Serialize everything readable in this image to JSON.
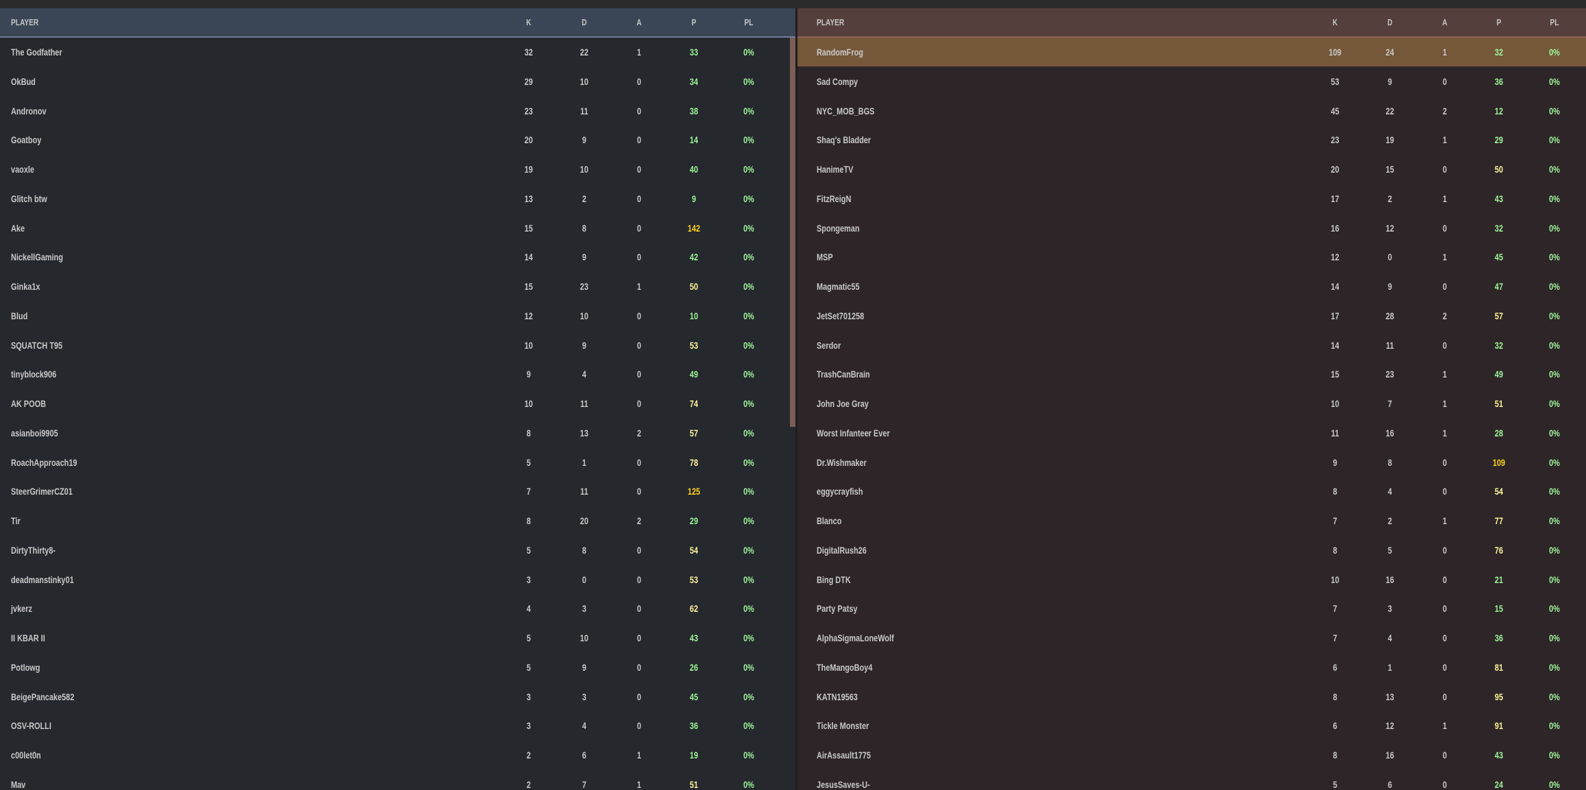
{
  "columns": {
    "player": "PLAYER",
    "k": "K",
    "d": "D",
    "a": "A",
    "p": "P",
    "pl": "PL"
  },
  "colors": {
    "p_low": "#9ff59a",
    "p_mid": "#fff59d",
    "p_high": "#ffd21a",
    "pl": "#9ff59a",
    "highlight_row": "#75583a",
    "left_header": "#3a4655",
    "right_header": "#553f3c"
  },
  "left_team": [
    {
      "name": "The Godfather",
      "k": "32",
      "d": "22",
      "a": "1",
      "p": "33",
      "pl": "0%"
    },
    {
      "name": "OkBud",
      "k": "29",
      "d": "10",
      "a": "0",
      "p": "34",
      "pl": "0%"
    },
    {
      "name": "Andronov",
      "k": "23",
      "d": "11",
      "a": "0",
      "p": "38",
      "pl": "0%"
    },
    {
      "name": "Goatboy",
      "k": "20",
      "d": "9",
      "a": "0",
      "p": "14",
      "pl": "0%"
    },
    {
      "name": "vaoxle",
      "k": "19",
      "d": "10",
      "a": "0",
      "p": "40",
      "pl": "0%"
    },
    {
      "name": "Glitch btw",
      "k": "13",
      "d": "2",
      "a": "0",
      "p": "9",
      "pl": "0%"
    },
    {
      "name": "Ake",
      "k": "15",
      "d": "8",
      "a": "0",
      "p": "142",
      "pl": "0%"
    },
    {
      "name": "NickellGaming",
      "k": "14",
      "d": "9",
      "a": "0",
      "p": "42",
      "pl": "0%"
    },
    {
      "name": "Ginka1x",
      "k": "15",
      "d": "23",
      "a": "1",
      "p": "50",
      "pl": "0%"
    },
    {
      "name": "Blud",
      "k": "12",
      "d": "10",
      "a": "0",
      "p": "10",
      "pl": "0%"
    },
    {
      "name": "SQUATCH T95",
      "k": "10",
      "d": "9",
      "a": "0",
      "p": "53",
      "pl": "0%"
    },
    {
      "name": "tinyblock906",
      "k": "9",
      "d": "4",
      "a": "0",
      "p": "49",
      "pl": "0%"
    },
    {
      "name": "AK POOB",
      "k": "10",
      "d": "11",
      "a": "0",
      "p": "74",
      "pl": "0%"
    },
    {
      "name": "asianboi9905",
      "k": "8",
      "d": "13",
      "a": "2",
      "p": "57",
      "pl": "0%"
    },
    {
      "name": "RoachApproach19",
      "k": "5",
      "d": "1",
      "a": "0",
      "p": "78",
      "pl": "0%"
    },
    {
      "name": "SteerGrimerCZ01",
      "k": "7",
      "d": "11",
      "a": "0",
      "p": "125",
      "pl": "0%"
    },
    {
      "name": "Tir",
      "k": "8",
      "d": "20",
      "a": "2",
      "p": "29",
      "pl": "0%"
    },
    {
      "name": "DirtyThirty8-",
      "k": "5",
      "d": "8",
      "a": "0",
      "p": "54",
      "pl": "0%"
    },
    {
      "name": "deadmanstinky01",
      "k": "3",
      "d": "0",
      "a": "0",
      "p": "53",
      "pl": "0%"
    },
    {
      "name": "jvkerz",
      "k": "4",
      "d": "3",
      "a": "0",
      "p": "62",
      "pl": "0%"
    },
    {
      "name": "II KBAR II",
      "k": "5",
      "d": "10",
      "a": "0",
      "p": "43",
      "pl": "0%"
    },
    {
      "name": "Potlowg",
      "k": "5",
      "d": "9",
      "a": "0",
      "p": "26",
      "pl": "0%"
    },
    {
      "name": "BeigePancake582",
      "k": "3",
      "d": "3",
      "a": "0",
      "p": "45",
      "pl": "0%"
    },
    {
      "name": "OSV-ROLLI",
      "k": "3",
      "d": "4",
      "a": "0",
      "p": "36",
      "pl": "0%"
    },
    {
      "name": "c00let0n",
      "k": "2",
      "d": "6",
      "a": "1",
      "p": "19",
      "pl": "0%"
    },
    {
      "name": "Mav",
      "k": "2",
      "d": "7",
      "a": "1",
      "p": "51",
      "pl": "0%"
    }
  ],
  "right_team": [
    {
      "name": "RandomFrog",
      "k": "109",
      "d": "24",
      "a": "1",
      "p": "32",
      "pl": "0%",
      "highlighted": true
    },
    {
      "name": "Sad Compy",
      "k": "53",
      "d": "9",
      "a": "0",
      "p": "36",
      "pl": "0%"
    },
    {
      "name": "NYC_MOB_BGS",
      "k": "45",
      "d": "22",
      "a": "2",
      "p": "12",
      "pl": "0%"
    },
    {
      "name": "Shaq's Bladder",
      "k": "23",
      "d": "19",
      "a": "1",
      "p": "29",
      "pl": "0%"
    },
    {
      "name": "HanimeTV",
      "k": "20",
      "d": "15",
      "a": "0",
      "p": "50",
      "pl": "0%"
    },
    {
      "name": "FitzReigN",
      "k": "17",
      "d": "2",
      "a": "1",
      "p": "43",
      "pl": "0%"
    },
    {
      "name": "Spongeman",
      "k": "16",
      "d": "12",
      "a": "0",
      "p": "32",
      "pl": "0%"
    },
    {
      "name": "MSP",
      "k": "12",
      "d": "0",
      "a": "1",
      "p": "45",
      "pl": "0%"
    },
    {
      "name": "Magmatic55",
      "k": "14",
      "d": "9",
      "a": "0",
      "p": "47",
      "pl": "0%"
    },
    {
      "name": "JetSet701258",
      "k": "17",
      "d": "28",
      "a": "2",
      "p": "57",
      "pl": "0%"
    },
    {
      "name": "Serdor",
      "k": "14",
      "d": "11",
      "a": "0",
      "p": "32",
      "pl": "0%"
    },
    {
      "name": "TrashCanBrain",
      "k": "15",
      "d": "23",
      "a": "1",
      "p": "49",
      "pl": "0%"
    },
    {
      "name": "John Joe Gray",
      "k": "10",
      "d": "7",
      "a": "1",
      "p": "51",
      "pl": "0%"
    },
    {
      "name": "Worst Infanteer Ever",
      "k": "11",
      "d": "16",
      "a": "1",
      "p": "28",
      "pl": "0%"
    },
    {
      "name": "Dr.Wishmaker",
      "k": "9",
      "d": "8",
      "a": "0",
      "p": "109",
      "pl": "0%"
    },
    {
      "name": "eggycrayfish",
      "k": "8",
      "d": "4",
      "a": "0",
      "p": "54",
      "pl": "0%"
    },
    {
      "name": "Blanco",
      "k": "7",
      "d": "2",
      "a": "1",
      "p": "77",
      "pl": "0%"
    },
    {
      "name": "DigitalRush26",
      "k": "8",
      "d": "5",
      "a": "0",
      "p": "76",
      "pl": "0%"
    },
    {
      "name": "Bing DTK",
      "k": "10",
      "d": "16",
      "a": "0",
      "p": "21",
      "pl": "0%"
    },
    {
      "name": "Party Patsy",
      "k": "7",
      "d": "3",
      "a": "0",
      "p": "15",
      "pl": "0%"
    },
    {
      "name": "AlphaSigmaLoneWolf",
      "k": "7",
      "d": "4",
      "a": "0",
      "p": "36",
      "pl": "0%"
    },
    {
      "name": "TheMangoBoy4",
      "k": "6",
      "d": "1",
      "a": "0",
      "p": "81",
      "pl": "0%"
    },
    {
      "name": "KATN19563",
      "k": "8",
      "d": "13",
      "a": "0",
      "p": "95",
      "pl": "0%"
    },
    {
      "name": "Tickle Monster",
      "k": "6",
      "d": "12",
      "a": "1",
      "p": "91",
      "pl": "0%"
    },
    {
      "name": "AirAssault1775",
      "k": "8",
      "d": "16",
      "a": "0",
      "p": "43",
      "pl": "0%"
    },
    {
      "name": "JesusSaves-U-",
      "k": "5",
      "d": "6",
      "a": "0",
      "p": "24",
      "pl": "0%"
    }
  ]
}
